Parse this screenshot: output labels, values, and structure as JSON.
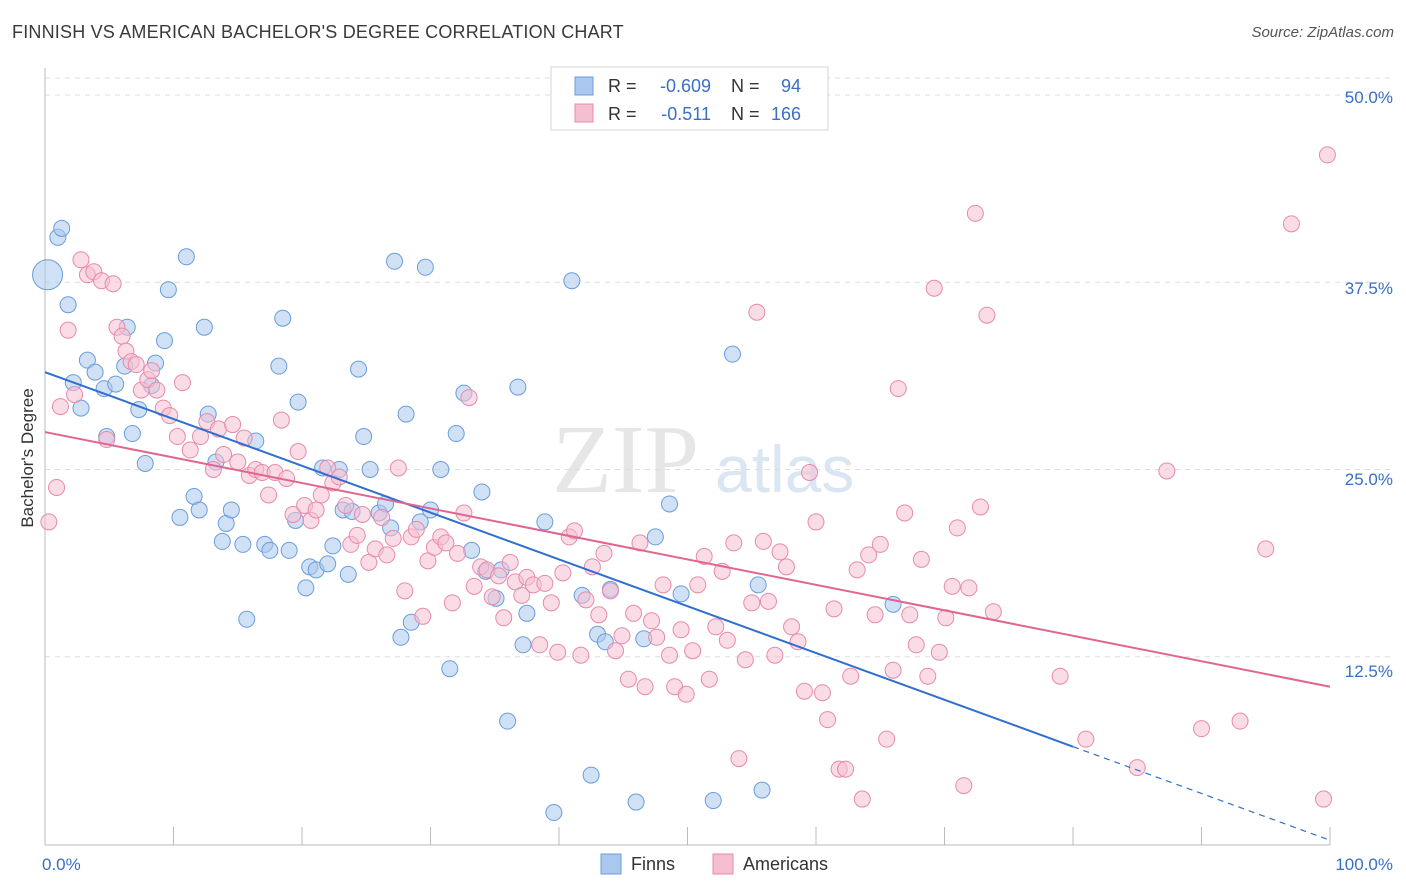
{
  "header": {
    "title": "FINNISH VS AMERICAN BACHELOR'S DEGREE CORRELATION CHART",
    "source": "Source: ZipAtlas.com"
  },
  "watermark": {
    "zip": "ZIP",
    "atlas": "atlas"
  },
  "colors": {
    "finns_fill": "#aac8ee",
    "finns_stroke": "#6a9ddc",
    "finns_line": "#2f6fcf",
    "americans_fill": "#f6bfd1",
    "americans_stroke": "#e88aaa",
    "americans_line": "#e06690",
    "value_text": "#3a6fc4",
    "grid": "#dddddd"
  },
  "legend_top": {
    "rows": [
      {
        "r_label": "R =",
        "r_value": "-0.609",
        "n_label": "N =",
        "n_value": "94"
      },
      {
        "r_label": "R =",
        "r_value": "-0.511",
        "n_label": "N =",
        "n_value": "166"
      }
    ]
  },
  "legend_bottom": {
    "items": [
      "Finns",
      "Americans"
    ]
  },
  "chart_data": {
    "type": "scatter",
    "ylabel": "Bachelor's Degree",
    "xlim": [
      0,
      100
    ],
    "ylim": [
      0,
      50
    ],
    "x_tick_labels": [
      "0.0%",
      "100.0%"
    ],
    "y_ticks": [
      12.5,
      25,
      37.5,
      50
    ],
    "y_tick_labels": [
      "12.5%",
      "25.0%",
      "37.5%",
      "50.0%"
    ],
    "grid": true,
    "series": [
      {
        "name": "Finns",
        "r": -0.609,
        "n": 94,
        "trend": {
          "x0": 0,
          "y0": 31.5,
          "x1": 80,
          "y1": 6.5,
          "dashed_to": 100
        },
        "points": [
          [
            0.2,
            38.0
          ],
          [
            1,
            40.5
          ],
          [
            1.3,
            41.1
          ],
          [
            1.8,
            36.0
          ],
          [
            2.2,
            30.8
          ],
          [
            2.8,
            29.1
          ],
          [
            3.3,
            32.3
          ],
          [
            3.9,
            31.5
          ],
          [
            4.6,
            30.4
          ],
          [
            4.8,
            27.2
          ],
          [
            5.5,
            30.7
          ],
          [
            6.2,
            31.9
          ],
          [
            6.4,
            34.5
          ],
          [
            6.8,
            27.4
          ],
          [
            7.3,
            29.0
          ],
          [
            7.8,
            25.4
          ],
          [
            8.3,
            30.6
          ],
          [
            8.6,
            32.1
          ],
          [
            9.3,
            33.6
          ],
          [
            9.6,
            37.0
          ],
          [
            10.5,
            21.8
          ],
          [
            11,
            39.2
          ],
          [
            11.6,
            23.2
          ],
          [
            12.0,
            22.3
          ],
          [
            12.4,
            34.5
          ],
          [
            12.7,
            28.7
          ],
          [
            13.3,
            25.5
          ],
          [
            13.8,
            20.2
          ],
          [
            14.1,
            21.4
          ],
          [
            14.5,
            22.3
          ],
          [
            15.4,
            20.0
          ],
          [
            15.7,
            15.0
          ],
          [
            16.4,
            26.9
          ],
          [
            17.1,
            20.0
          ],
          [
            17.5,
            19.6
          ],
          [
            18.2,
            31.9
          ],
          [
            18.5,
            35.1
          ],
          [
            19.0,
            19.6
          ],
          [
            19.5,
            21.6
          ],
          [
            19.7,
            29.5
          ],
          [
            20.3,
            17.1
          ],
          [
            20.6,
            18.5
          ],
          [
            21.1,
            18.3
          ],
          [
            21.6,
            25.1
          ],
          [
            22.0,
            18.7
          ],
          [
            22.4,
            19.9
          ],
          [
            22.9,
            25.0
          ],
          [
            23.2,
            22.3
          ],
          [
            23.6,
            18.0
          ],
          [
            23.9,
            22.2
          ],
          [
            24.4,
            31.7
          ],
          [
            24.8,
            27.2
          ],
          [
            25.3,
            25.0
          ],
          [
            26.0,
            22.1
          ],
          [
            26.5,
            22.7
          ],
          [
            26.9,
            21.1
          ],
          [
            27.2,
            38.9
          ],
          [
            27.7,
            13.8
          ],
          [
            28.1,
            28.7
          ],
          [
            28.5,
            14.8
          ],
          [
            29.2,
            21.5
          ],
          [
            29.6,
            38.5
          ],
          [
            30.0,
            22.3
          ],
          [
            30.8,
            25.0
          ],
          [
            31.5,
            11.7
          ],
          [
            32.0,
            27.4
          ],
          [
            32.6,
            30.1
          ],
          [
            33.2,
            19.6
          ],
          [
            34.0,
            23.5
          ],
          [
            34.3,
            18.2
          ],
          [
            35.1,
            16.4
          ],
          [
            35.5,
            18.3
          ],
          [
            36.0,
            8.2
          ],
          [
            36.8,
            30.5
          ],
          [
            37.2,
            13.3
          ],
          [
            37.5,
            15.4
          ],
          [
            38.9,
            21.5
          ],
          [
            39.6,
            2.1
          ],
          [
            41.0,
            37.6
          ],
          [
            41.8,
            16.6
          ],
          [
            42.5,
            4.6
          ],
          [
            43.0,
            14.0
          ],
          [
            43.6,
            13.5
          ],
          [
            44.0,
            17.0
          ],
          [
            46.0,
            2.8
          ],
          [
            46.6,
            13.7
          ],
          [
            47.5,
            20.5
          ],
          [
            48.6,
            22.7
          ],
          [
            49.5,
            16.7
          ],
          [
            52.0,
            2.9
          ],
          [
            53.5,
            32.7
          ],
          [
            55.5,
            17.3
          ],
          [
            55.8,
            3.6
          ],
          [
            66.0,
            16.0
          ]
        ]
      },
      {
        "name": "Americans",
        "r": -0.511,
        "n": 166,
        "trend": {
          "x0": 0,
          "y0": 27.5,
          "x1": 100,
          "y1": 10.5
        },
        "points": [
          [
            0.3,
            21.5
          ],
          [
            0.9,
            23.8
          ],
          [
            1.2,
            29.2
          ],
          [
            1.8,
            34.3
          ],
          [
            2.3,
            30.0
          ],
          [
            2.8,
            39.0
          ],
          [
            3.3,
            38.0
          ],
          [
            3.8,
            38.2
          ],
          [
            4.4,
            37.6
          ],
          [
            4.8,
            27.0
          ],
          [
            5.3,
            37.4
          ],
          [
            5.6,
            34.5
          ],
          [
            6.0,
            33.9
          ],
          [
            6.3,
            32.9
          ],
          [
            6.7,
            32.2
          ],
          [
            7.1,
            32.0
          ],
          [
            7.5,
            30.3
          ],
          [
            8.0,
            31.0
          ],
          [
            8.3,
            31.6
          ],
          [
            8.7,
            30.3
          ],
          [
            9.2,
            29.1
          ],
          [
            9.7,
            28.6
          ],
          [
            10.3,
            27.2
          ],
          [
            10.7,
            30.8
          ],
          [
            11.3,
            26.3
          ],
          [
            12.1,
            27.2
          ],
          [
            12.6,
            28.2
          ],
          [
            13.1,
            25.0
          ],
          [
            13.5,
            27.7
          ],
          [
            13.9,
            26.0
          ],
          [
            14.6,
            28.0
          ],
          [
            15.0,
            25.5
          ],
          [
            15.5,
            27.1
          ],
          [
            15.9,
            24.6
          ],
          [
            16.4,
            25.0
          ],
          [
            16.9,
            24.8
          ],
          [
            17.4,
            23.3
          ],
          [
            17.9,
            24.8
          ],
          [
            18.4,
            28.3
          ],
          [
            18.8,
            24.4
          ],
          [
            19.3,
            22.0
          ],
          [
            19.7,
            26.2
          ],
          [
            20.2,
            22.6
          ],
          [
            20.7,
            21.6
          ],
          [
            21.1,
            22.3
          ],
          [
            21.5,
            23.3
          ],
          [
            22.0,
            25.1
          ],
          [
            22.4,
            24.1
          ],
          [
            22.9,
            24.5
          ],
          [
            23.4,
            22.6
          ],
          [
            23.8,
            20.0
          ],
          [
            24.3,
            20.6
          ],
          [
            24.7,
            22.0
          ],
          [
            25.2,
            18.8
          ],
          [
            25.7,
            19.7
          ],
          [
            26.2,
            21.8
          ],
          [
            26.6,
            19.3
          ],
          [
            27.1,
            20.4
          ],
          [
            27.5,
            25.1
          ],
          [
            28.0,
            16.9
          ],
          [
            28.5,
            20.5
          ],
          [
            28.9,
            21.0
          ],
          [
            29.4,
            15.2
          ],
          [
            29.8,
            18.9
          ],
          [
            30.3,
            19.8
          ],
          [
            30.8,
            20.5
          ],
          [
            31.2,
            20.1
          ],
          [
            31.7,
            16.1
          ],
          [
            32.1,
            19.4
          ],
          [
            32.6,
            22.1
          ],
          [
            33.0,
            29.8
          ],
          [
            33.4,
            17.2
          ],
          [
            33.9,
            18.5
          ],
          [
            34.4,
            18.3
          ],
          [
            34.8,
            16.5
          ],
          [
            35.3,
            17.9
          ],
          [
            35.7,
            15.1
          ],
          [
            36.2,
            18.8
          ],
          [
            36.6,
            17.5
          ],
          [
            37.1,
            16.6
          ],
          [
            37.5,
            17.8
          ],
          [
            38.0,
            17.3
          ],
          [
            38.5,
            13.3
          ],
          [
            38.9,
            17.4
          ],
          [
            39.4,
            16.1
          ],
          [
            39.9,
            12.8
          ],
          [
            40.3,
            18.1
          ],
          [
            40.8,
            20.5
          ],
          [
            41.2,
            20.9
          ],
          [
            41.7,
            12.6
          ],
          [
            42.1,
            16.3
          ],
          [
            42.6,
            18.5
          ],
          [
            43.1,
            15.3
          ],
          [
            43.5,
            19.4
          ],
          [
            44.0,
            16.9
          ],
          [
            44.4,
            12.9
          ],
          [
            44.9,
            13.9
          ],
          [
            45.4,
            11.0
          ],
          [
            45.8,
            15.4
          ],
          [
            46.3,
            20.1
          ],
          [
            46.7,
            10.5
          ],
          [
            47.2,
            14.9
          ],
          [
            47.6,
            13.8
          ],
          [
            48.1,
            17.3
          ],
          [
            48.6,
            12.6
          ],
          [
            49.0,
            10.5
          ],
          [
            49.5,
            14.3
          ],
          [
            49.9,
            10.0
          ],
          [
            50.4,
            12.9
          ],
          [
            50.8,
            17.3
          ],
          [
            51.3,
            19.2
          ],
          [
            51.7,
            11.0
          ],
          [
            52.2,
            14.5
          ],
          [
            52.7,
            18.2
          ],
          [
            53.1,
            13.6
          ],
          [
            53.6,
            20.1
          ],
          [
            54.0,
            5.7
          ],
          [
            54.5,
            12.3
          ],
          [
            55.0,
            16.1
          ],
          [
            55.4,
            35.5
          ],
          [
            55.9,
            20.2
          ],
          [
            56.3,
            16.2
          ],
          [
            56.8,
            12.6
          ],
          [
            57.2,
            19.5
          ],
          [
            57.7,
            18.5
          ],
          [
            58.1,
            14.5
          ],
          [
            58.6,
            13.5
          ],
          [
            59.1,
            10.2
          ],
          [
            59.5,
            24.8
          ],
          [
            60.0,
            21.5
          ],
          [
            60.5,
            10.1
          ],
          [
            60.9,
            8.3
          ],
          [
            61.4,
            15.7
          ],
          [
            61.8,
            5.0
          ],
          [
            62.3,
            5.0
          ],
          [
            62.7,
            11.2
          ],
          [
            63.2,
            18.3
          ],
          [
            63.6,
            3.0
          ],
          [
            64.1,
            19.3
          ],
          [
            64.6,
            15.3
          ],
          [
            65.0,
            20.0
          ],
          [
            65.5,
            7.0
          ],
          [
            66.0,
            11.6
          ],
          [
            66.4,
            30.4
          ],
          [
            66.9,
            22.1
          ],
          [
            67.3,
            15.3
          ],
          [
            67.8,
            13.3
          ],
          [
            68.2,
            19.0
          ],
          [
            68.7,
            11.2
          ],
          [
            69.2,
            37.1
          ],
          [
            69.6,
            12.8
          ],
          [
            70.1,
            15.1
          ],
          [
            70.6,
            17.2
          ],
          [
            71.0,
            21.1
          ],
          [
            71.5,
            3.9
          ],
          [
            71.9,
            17.1
          ],
          [
            72.4,
            42.1
          ],
          [
            72.8,
            22.5
          ],
          [
            73.3,
            35.3
          ],
          [
            73.8,
            15.5
          ],
          [
            79.0,
            11.2
          ],
          [
            81.0,
            7.0
          ],
          [
            85.0,
            5.1
          ],
          [
            87.3,
            24.9
          ],
          [
            90.0,
            7.7
          ],
          [
            93.0,
            8.2
          ],
          [
            95.0,
            19.7
          ],
          [
            97.0,
            41.4
          ],
          [
            99.8,
            46.0
          ],
          [
            99.5,
            3.0
          ]
        ]
      }
    ]
  }
}
